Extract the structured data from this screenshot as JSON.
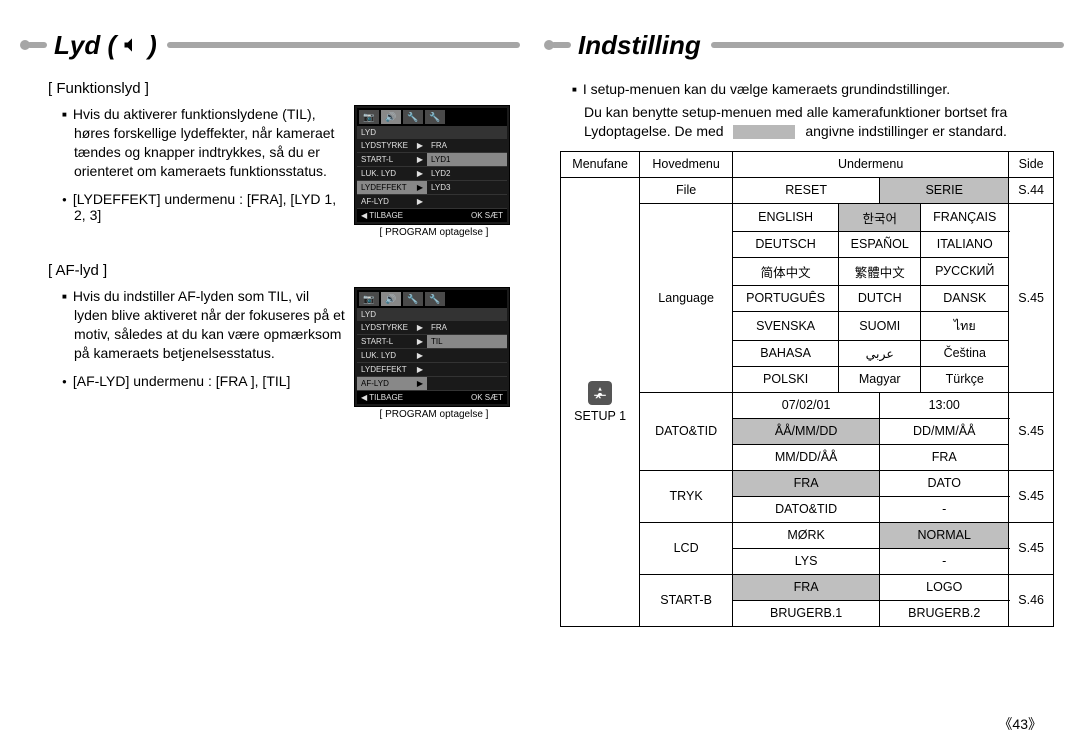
{
  "left": {
    "heading": "Lyd (",
    "heading_close": ")",
    "section1": {
      "title": "[ Funktionslyd ]",
      "para": "Hvis du aktiverer funktionslydene (TIL), høres forskellige lydeffekter, når kameraet tændes og knapper indtrykkes, så du er orienteret om kameraets funktionsstatus.",
      "bullet": "[LYDEFFEKT] undermenu : [FRA], [LYD 1, 2, 3]"
    },
    "section2": {
      "title": "[ AF-lyd ]",
      "para": "Hvis du indstiller AF-lyden som TIL, vil lyden blive aktiveret når der fokuseres på et motiv, således at du kan være opmærksom på kameraets betjenelsesstatus.",
      "bullet": "[AF-LYD] undermenu : [FRA ], [TIL]"
    },
    "lcd1": {
      "label": "LYD",
      "rows": [
        "LYDSTYRKE",
        "START-L",
        "LUK. LYD",
        "LYDEFFEKT",
        "AF-LYD"
      ],
      "sel_index": 3,
      "right": [
        "FRA",
        "LYD1",
        "LYD2",
        "LYD3"
      ],
      "right_sel": 1,
      "foot_back": "◀  TILBAGE",
      "foot_ok": "OK  SÆT",
      "caption": "[ PROGRAM optagelse ]"
    },
    "lcd2": {
      "label": "LYD",
      "rows": [
        "LYDSTYRKE",
        "START-L",
        "LUK. LYD",
        "LYDEFFEKT",
        "AF-LYD"
      ],
      "sel_index": 4,
      "right": [
        "FRA",
        "TIL"
      ],
      "right_sel": 1,
      "foot_back": "◀  TILBAGE",
      "foot_ok": "OK  SÆT",
      "caption": "[ PROGRAM optagelse ]"
    }
  },
  "right": {
    "heading": "Indstilling",
    "intro1": "I setup-menuen kan du vælge kameraets grundindstillinger.",
    "intro2a": "Du kan benytte setup-menuen med alle kamerafunktioner bortset fra Lydoptagelse. De med",
    "intro2b": "angivne indstillinger er standard.",
    "table": {
      "header": [
        "Menufane",
        "Hovedmenu",
        "Undermenu",
        "Side"
      ],
      "menutab": "SETUP 1",
      "rows": [
        {
          "main": "File",
          "cells": [
            [
              "RESET",
              "SERIE"
            ]
          ],
          "shade": [
            [
              false,
              true
            ]
          ],
          "colspan": 2,
          "side": "S.44"
        },
        {
          "main": "Language",
          "cells": [
            [
              "ENGLISH",
              "한국어",
              "FRANÇAIS"
            ],
            [
              "DEUTSCH",
              "ESPAÑOL",
              "ITALIANO"
            ],
            [
              "简体中文",
              "繁體中文",
              "РУССКИЙ"
            ],
            [
              "PORTUGUÊS",
              "DUTCH",
              "DANSK"
            ],
            [
              "SVENSKA",
              "SUOMI",
              "ไทย"
            ],
            [
              "BAHASA",
              "عربي",
              "Čeština"
            ],
            [
              "POLSKI",
              "Magyar",
              "Türkçe"
            ]
          ],
          "shade": [
            [
              false,
              true,
              false
            ],
            [
              false,
              false,
              false
            ],
            [
              false,
              false,
              false
            ],
            [
              false,
              false,
              false
            ],
            [
              false,
              false,
              false
            ],
            [
              false,
              false,
              false
            ],
            [
              false,
              false,
              false
            ]
          ],
          "colspan": 3,
          "side": "S.45"
        },
        {
          "main": "DATO&TID",
          "cells": [
            [
              "07/02/01",
              "13:00"
            ],
            [
              "ÅÅ/MM/DD",
              "DD/MM/ÅÅ"
            ],
            [
              "MM/DD/ÅÅ",
              "FRA"
            ]
          ],
          "shade": [
            [
              false,
              false
            ],
            [
              true,
              false
            ],
            [
              false,
              false
            ]
          ],
          "colspan": 2,
          "side": "S.45"
        },
        {
          "main": "TRYK",
          "cells": [
            [
              "FRA",
              "DATO"
            ],
            [
              "DATO&TID",
              "-"
            ]
          ],
          "shade": [
            [
              true,
              false
            ],
            [
              false,
              false
            ]
          ],
          "colspan": 2,
          "side": "S.45"
        },
        {
          "main": "LCD",
          "cells": [
            [
              "MØRK",
              "NORMAL"
            ],
            [
              "LYS",
              "-"
            ]
          ],
          "shade": [
            [
              false,
              true
            ],
            [
              false,
              false
            ]
          ],
          "colspan": 2,
          "side": "S.45"
        },
        {
          "main": "START-B",
          "cells": [
            [
              "FRA",
              "LOGO"
            ],
            [
              "BRUGERB.1",
              "BRUGERB.2"
            ]
          ],
          "shade": [
            [
              true,
              false
            ],
            [
              false,
              false
            ]
          ],
          "colspan": 2,
          "side": "S.46"
        }
      ]
    }
  },
  "page_number": "《43》"
}
